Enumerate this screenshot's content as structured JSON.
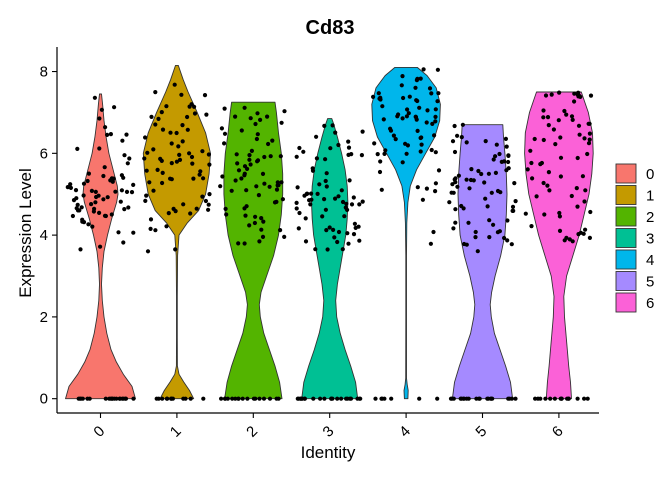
{
  "chart_data": {
    "type": "violin",
    "title": "Cd83",
    "xlabel": "Identity",
    "ylabel": "Expression Level",
    "ylim": [
      -0.35,
      8.6
    ],
    "yticks": [
      0,
      2,
      4,
      6,
      8
    ],
    "categories": [
      "0",
      "1",
      "2",
      "3",
      "4",
      "5",
      "6"
    ],
    "legend": {
      "position": "right",
      "title": ""
    },
    "colors": [
      "#F8766D",
      "#C49A00",
      "#53B400",
      "#00C094",
      "#00B6EB",
      "#A58AFF",
      "#FB61D7"
    ],
    "series": [
      {
        "category": "0",
        "max": 7.45,
        "zero_fraction": 0.45,
        "cluster_center": 5.1,
        "density": [
          [
            0,
            1.0
          ],
          [
            0.3,
            0.9
          ],
          [
            0.6,
            0.65
          ],
          [
            0.9,
            0.45
          ],
          [
            1.2,
            0.3
          ],
          [
            1.6,
            0.18
          ],
          [
            2,
            0.1
          ],
          [
            2.4,
            0.05
          ],
          [
            2.8,
            0.03
          ],
          [
            3.2,
            0.05
          ],
          [
            3.6,
            0.1
          ],
          [
            4,
            0.2
          ],
          [
            4.4,
            0.32
          ],
          [
            4.8,
            0.46
          ],
          [
            5.0,
            0.5
          ],
          [
            5.2,
            0.48
          ],
          [
            5.6,
            0.36
          ],
          [
            6.0,
            0.24
          ],
          [
            6.4,
            0.16
          ],
          [
            6.8,
            0.1
          ],
          [
            7.2,
            0.06
          ],
          [
            7.45,
            0.03
          ]
        ]
      },
      {
        "category": "1",
        "max": 8.15,
        "zero_fraction": 0.2,
        "cluster_center": 5.8,
        "density": [
          [
            0,
            0.48
          ],
          [
            0.2,
            0.36
          ],
          [
            0.4,
            0.2
          ],
          [
            0.6,
            0.06
          ],
          [
            0.8,
            0.015
          ],
          [
            1.5,
            0.012
          ],
          [
            2.5,
            0.012
          ],
          [
            3.5,
            0.02
          ],
          [
            4.0,
            0.06
          ],
          [
            4.3,
            0.3
          ],
          [
            4.6,
            0.62
          ],
          [
            5.0,
            0.82
          ],
          [
            5.5,
            0.92
          ],
          [
            6.0,
            0.96
          ],
          [
            6.5,
            0.82
          ],
          [
            7.0,
            0.58
          ],
          [
            7.5,
            0.32
          ],
          [
            7.8,
            0.18
          ],
          [
            8.15,
            0.04
          ]
        ]
      },
      {
        "category": "2",
        "max": 7.25,
        "zero_fraction": 0.35,
        "cluster_center": 5.3,
        "density": [
          [
            0,
            0.82
          ],
          [
            0.4,
            0.75
          ],
          [
            0.8,
            0.62
          ],
          [
            1.2,
            0.46
          ],
          [
            1.6,
            0.3
          ],
          [
            2.0,
            0.2
          ],
          [
            2.3,
            0.17
          ],
          [
            2.6,
            0.22
          ],
          [
            3.0,
            0.38
          ],
          [
            3.5,
            0.58
          ],
          [
            4.0,
            0.72
          ],
          [
            4.5,
            0.8
          ],
          [
            5.0,
            0.84
          ],
          [
            5.5,
            0.84
          ],
          [
            6.0,
            0.8
          ],
          [
            6.5,
            0.72
          ],
          [
            7.0,
            0.66
          ],
          [
            7.25,
            0.62
          ]
        ]
      },
      {
        "category": "3",
        "max": 6.85,
        "zero_fraction": 0.55,
        "cluster_center": 4.9,
        "density": [
          [
            0,
            0.8
          ],
          [
            0.4,
            0.74
          ],
          [
            0.8,
            0.6
          ],
          [
            1.2,
            0.44
          ],
          [
            1.6,
            0.3
          ],
          [
            2.0,
            0.2
          ],
          [
            2.4,
            0.17
          ],
          [
            2.8,
            0.22
          ],
          [
            3.2,
            0.3
          ],
          [
            3.6,
            0.38
          ],
          [
            4.0,
            0.46
          ],
          [
            4.4,
            0.5
          ],
          [
            4.8,
            0.52
          ],
          [
            5.2,
            0.5
          ],
          [
            5.6,
            0.44
          ],
          [
            6.0,
            0.34
          ],
          [
            6.4,
            0.22
          ],
          [
            6.7,
            0.12
          ],
          [
            6.85,
            0.06
          ]
        ]
      },
      {
        "category": "4",
        "max": 8.1,
        "zero_fraction": 0.04,
        "cluster_center": 7.0,
        "density": [
          [
            0,
            0.05
          ],
          [
            0.2,
            0.06
          ],
          [
            0.35,
            0.03
          ],
          [
            0.5,
            0.012
          ],
          [
            2.0,
            0.01
          ],
          [
            3.5,
            0.01
          ],
          [
            4.3,
            0.02
          ],
          [
            4.8,
            0.05
          ],
          [
            5.2,
            0.12
          ],
          [
            5.6,
            0.3
          ],
          [
            6.0,
            0.56
          ],
          [
            6.4,
            0.82
          ],
          [
            6.8,
            0.96
          ],
          [
            7.2,
            0.98
          ],
          [
            7.6,
            0.86
          ],
          [
            7.9,
            0.6
          ],
          [
            8.1,
            0.32
          ]
        ]
      },
      {
        "category": "5",
        "max": 6.7,
        "zero_fraction": 0.5,
        "cluster_center": 4.8,
        "density": [
          [
            0,
            0.86
          ],
          [
            0.4,
            0.8
          ],
          [
            0.8,
            0.66
          ],
          [
            1.2,
            0.5
          ],
          [
            1.6,
            0.34
          ],
          [
            2.0,
            0.25
          ],
          [
            2.3,
            0.22
          ],
          [
            2.6,
            0.26
          ],
          [
            3.0,
            0.36
          ],
          [
            3.5,
            0.52
          ],
          [
            4.0,
            0.64
          ],
          [
            4.5,
            0.68
          ],
          [
            5.0,
            0.7
          ],
          [
            5.5,
            0.68
          ],
          [
            6.0,
            0.64
          ],
          [
            6.4,
            0.6
          ],
          [
            6.7,
            0.58
          ]
        ]
      },
      {
        "category": "6",
        "max": 7.5,
        "zero_fraction": 0.3,
        "cluster_center": 5.8,
        "density": [
          [
            0,
            0.36
          ],
          [
            0.4,
            0.33
          ],
          [
            0.8,
            0.28
          ],
          [
            1.2,
            0.24
          ],
          [
            1.6,
            0.2
          ],
          [
            2.0,
            0.16
          ],
          [
            2.5,
            0.14
          ],
          [
            3.0,
            0.22
          ],
          [
            3.5,
            0.4
          ],
          [
            4.0,
            0.58
          ],
          [
            4.5,
            0.72
          ],
          [
            5.0,
            0.86
          ],
          [
            5.5,
            0.94
          ],
          [
            6.0,
            0.98
          ],
          [
            6.5,
            0.96
          ],
          [
            7.0,
            0.84
          ],
          [
            7.5,
            0.64
          ]
        ]
      }
    ]
  }
}
